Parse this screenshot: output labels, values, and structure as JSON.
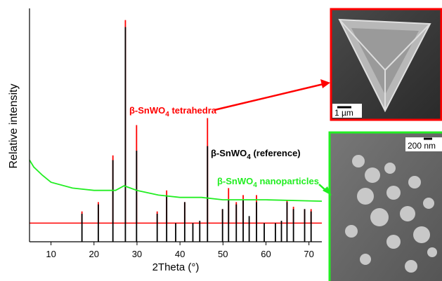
{
  "chart_data": {
    "type": "line",
    "xlabel": "2Theta (°)",
    "ylabel": "Relative intensity",
    "xlim": [
      5,
      73
    ],
    "ylim": [
      0,
      100
    ],
    "xticks": [
      10,
      20,
      30,
      40,
      50,
      60,
      70
    ],
    "series": [
      {
        "color": "#ff0000",
        "style": "stick",
        "baseline": 8,
        "x": [
          17.2,
          21,
          24.4,
          27.3,
          29.9,
          34.7,
          36.9,
          41.1,
          46.4,
          49.9,
          51.3,
          53.1,
          54.7,
          57.8,
          64.9,
          66.4,
          69,
          70.5
        ],
        "values": [
          13,
          17,
          37,
          95,
          50,
          13,
          22,
          17,
          53,
          14,
          23,
          17,
          20,
          20,
          18,
          15,
          14,
          14
        ]
      },
      {
        "color": "#000000",
        "style": "stick",
        "baseline": 0,
        "x": [
          17.2,
          21,
          24.4,
          27.3,
          29.9,
          34.7,
          36.9,
          39,
          41.1,
          43,
          44.6,
          46.4,
          49.9,
          51.3,
          53.1,
          54.7,
          56.1,
          57.8,
          59.6,
          62.2,
          63.6,
          64.9,
          66.4,
          69,
          70.5
        ],
        "values": [
          12,
          16,
          35,
          92,
          39,
          12,
          20,
          8,
          17,
          8,
          9,
          41,
          14,
          18,
          16,
          18,
          11,
          17,
          8,
          8,
          9,
          17,
          14,
          14,
          13
        ]
      },
      {
        "color": "#22ee22",
        "style": "curve",
        "x": [
          5,
          6,
          8,
          10,
          15,
          20,
          25,
          27,
          30,
          35,
          40,
          45,
          50,
          60,
          73
        ],
        "values": [
          35,
          32,
          28.5,
          25.5,
          23,
          22,
          22,
          24,
          22,
          20,
          19,
          19,
          18,
          18,
          17.4
        ]
      }
    ],
    "annotations": [
      {
        "color": "#ff0000",
        "text": "β-SnWO",
        "sub": "4",
        "rest": " tetrahedra"
      },
      {
        "color": "#000000",
        "text": "β-SnWO",
        "sub": "4",
        "rest": " (reference)"
      },
      {
        "color": "#22ee22",
        "text": "β-SnWO",
        "sub": "4",
        "rest": " nanoparticles"
      }
    ],
    "images": [
      {
        "scale_label": "1 µm"
      },
      {
        "scale_label": "200 nm"
      }
    ]
  }
}
